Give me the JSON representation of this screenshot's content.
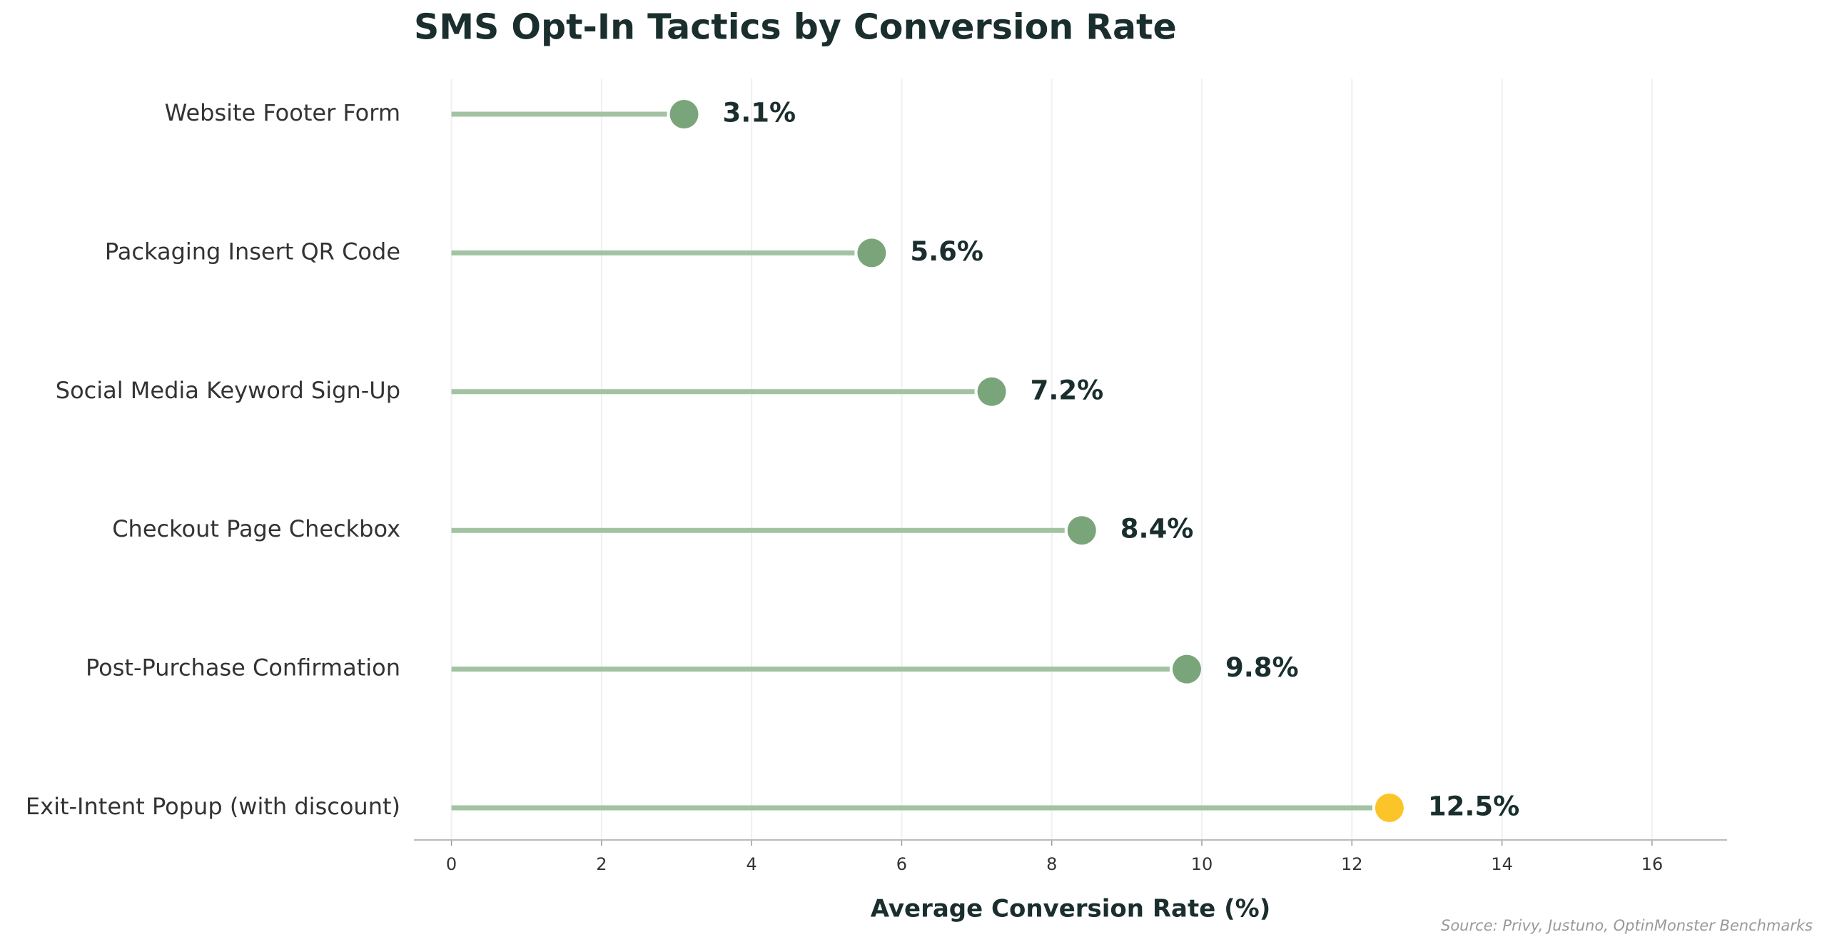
{
  "chart_data": {
    "type": "lollipop",
    "orientation": "horizontal",
    "title": "SMS Opt-In Tactics by Conversion Rate",
    "xlabel": "Average Conversion Rate (%)",
    "source": "Source: Privy, Justuno, OptinMonster Benchmarks",
    "categories": [
      "Website Footer Form",
      "Packaging Insert QR Code",
      "Social Media Keyword Sign-Up",
      "Checkout Page Checkbox",
      "Post-Purchase Confirmation",
      "Exit-Intent Popup (with discount)"
    ],
    "values": [
      3.1,
      5.6,
      7.2,
      8.4,
      9.8,
      12.5
    ],
    "value_labels": [
      "3.1%",
      "5.6%",
      "7.2%",
      "8.4%",
      "9.8%",
      "12.5%"
    ],
    "point_colors": [
      "#7aa57a",
      "#7aa57a",
      "#7aa57a",
      "#7aa57a",
      "#7aa57a",
      "#fbc52a"
    ],
    "stem_color": "#a3c2a3",
    "xlim": [
      -0.5,
      17
    ],
    "xticks": [
      0,
      2,
      4,
      6,
      8,
      10,
      12,
      14,
      16
    ],
    "grid": true
  }
}
